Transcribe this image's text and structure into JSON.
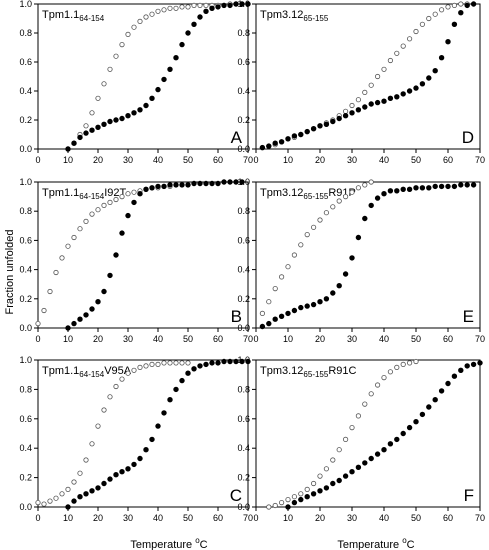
{
  "figure": {
    "ylabel": "Fraction unfolded",
    "xlabel_left": {
      "main": "Temperature ",
      "sup": "o",
      "unit": "C"
    },
    "xlabel_right": {
      "main": "Temperature ",
      "sup": "o",
      "unit": "C"
    }
  },
  "chart_data": [
    {
      "type": "scatter",
      "letter": "A",
      "title": {
        "main": "Tpm1.1",
        "sub": "64-154",
        "tail": ""
      },
      "xlim": [
        0,
        70
      ],
      "ylim": [
        0,
        1.0
      ],
      "xticks": [
        "0",
        "10",
        "20",
        "30",
        "40",
        "50",
        "60",
        "70"
      ],
      "yticks": [
        "0.0",
        "0.2",
        "0.4",
        "0.6",
        "0.8",
        "1.0"
      ],
      "series": [
        {
          "style": "open",
          "x": [
            10,
            12,
            14,
            16,
            18,
            20,
            22,
            24,
            26,
            28,
            30,
            32,
            34,
            36,
            38,
            40,
            42,
            44,
            46,
            48,
            50,
            52,
            54,
            56,
            58,
            60,
            62,
            64,
            66,
            68
          ],
          "y": [
            0.0,
            0.04,
            0.1,
            0.16,
            0.25,
            0.35,
            0.45,
            0.55,
            0.64,
            0.72,
            0.79,
            0.84,
            0.88,
            0.91,
            0.93,
            0.95,
            0.96,
            0.97,
            0.97,
            0.98,
            0.98,
            0.99,
            0.99,
            0.99,
            0.99,
            0.99,
            0.99,
            1.0,
            1.0,
            1.0
          ]
        },
        {
          "style": "filled",
          "x": [
            10,
            12,
            14,
            16,
            18,
            20,
            22,
            24,
            26,
            28,
            30,
            32,
            34,
            36,
            38,
            40,
            42,
            44,
            46,
            48,
            50,
            52,
            54,
            56,
            58,
            60,
            62,
            64,
            66,
            68,
            70
          ],
          "y": [
            0.0,
            0.04,
            0.08,
            0.11,
            0.13,
            0.15,
            0.17,
            0.19,
            0.2,
            0.21,
            0.23,
            0.25,
            0.27,
            0.3,
            0.35,
            0.41,
            0.48,
            0.55,
            0.63,
            0.72,
            0.8,
            0.86,
            0.91,
            0.95,
            0.97,
            0.98,
            0.99,
            0.99,
            1.0,
            1.0,
            1.0
          ]
        }
      ]
    },
    {
      "type": "scatter",
      "letter": "D",
      "title": {
        "main": "Tpm3.12",
        "sub": "65-155",
        "tail": ""
      },
      "xlim": [
        0,
        70
      ],
      "ylim": [
        0,
        1.0
      ],
      "xticks": [
        "0",
        "10",
        "20",
        "30",
        "40",
        "50",
        "60",
        "70"
      ],
      "yticks": [
        "0.0",
        "0.2",
        "0.4",
        "0.6",
        "0.8",
        "1.0"
      ],
      "series": [
        {
          "style": "open",
          "x": [
            2,
            4,
            6,
            8,
            10,
            12,
            14,
            16,
            18,
            20,
            22,
            24,
            26,
            28,
            30,
            32,
            34,
            36,
            38,
            40,
            42,
            44,
            46,
            48,
            50,
            52,
            54,
            56,
            58,
            60,
            62,
            64,
            66
          ],
          "y": [
            0.01,
            0.02,
            0.03,
            0.05,
            0.07,
            0.08,
            0.1,
            0.12,
            0.14,
            0.16,
            0.18,
            0.2,
            0.23,
            0.26,
            0.3,
            0.34,
            0.39,
            0.44,
            0.5,
            0.55,
            0.61,
            0.66,
            0.71,
            0.76,
            0.81,
            0.86,
            0.9,
            0.93,
            0.96,
            0.98,
            0.99,
            1.0,
            1.0
          ]
        },
        {
          "style": "filled",
          "x": [
            2,
            4,
            6,
            8,
            10,
            12,
            14,
            16,
            18,
            20,
            22,
            24,
            26,
            28,
            30,
            32,
            34,
            36,
            38,
            40,
            42,
            44,
            46,
            48,
            50,
            52,
            54,
            56,
            58,
            60,
            62,
            64,
            66,
            68
          ],
          "y": [
            0.01,
            0.02,
            0.04,
            0.05,
            0.07,
            0.09,
            0.1,
            0.12,
            0.14,
            0.16,
            0.17,
            0.19,
            0.21,
            0.23,
            0.25,
            0.27,
            0.29,
            0.31,
            0.32,
            0.33,
            0.35,
            0.36,
            0.38,
            0.4,
            0.42,
            0.45,
            0.49,
            0.54,
            0.63,
            0.74,
            0.86,
            0.94,
            0.99,
            1.0
          ]
        }
      ]
    },
    {
      "type": "scatter",
      "letter": "B",
      "title": {
        "main": "Tpm1.1",
        "sub": "64-154",
        "tail": "I92T"
      },
      "xlim": [
        0,
        70
      ],
      "ylim": [
        0,
        1.0
      ],
      "xticks": [
        "0",
        "10",
        "20",
        "30",
        "40",
        "50",
        "60",
        "70"
      ],
      "yticks": [
        "0.0",
        "0.2",
        "0.4",
        "0.6",
        "0.8",
        "1.0"
      ],
      "series": [
        {
          "style": "open",
          "x": [
            0,
            2,
            4,
            6,
            8,
            10,
            12,
            14,
            16,
            18,
            20,
            22,
            24,
            26,
            28,
            30,
            32,
            34,
            36,
            38,
            40,
            42,
            44,
            46,
            48,
            50
          ],
          "y": [
            0.03,
            0.12,
            0.25,
            0.38,
            0.48,
            0.56,
            0.62,
            0.68,
            0.73,
            0.78,
            0.81,
            0.84,
            0.86,
            0.88,
            0.9,
            0.92,
            0.93,
            0.94,
            0.95,
            0.96,
            0.96,
            0.97,
            0.97,
            0.98,
            0.98,
            0.98
          ]
        },
        {
          "style": "filled",
          "x": [
            10,
            12,
            14,
            16,
            18,
            20,
            22,
            24,
            26,
            28,
            30,
            32,
            34,
            36,
            38,
            40,
            42,
            44,
            46,
            48,
            50,
            52,
            54,
            56,
            58,
            60,
            62,
            64,
            66,
            68
          ],
          "y": [
            0.0,
            0.03,
            0.06,
            0.09,
            0.13,
            0.18,
            0.25,
            0.36,
            0.5,
            0.65,
            0.77,
            0.86,
            0.92,
            0.95,
            0.96,
            0.97,
            0.97,
            0.98,
            0.98,
            0.98,
            0.98,
            0.99,
            0.99,
            0.99,
            0.99,
            0.99,
            1.0,
            1.0,
            1.0,
            1.0
          ]
        }
      ]
    },
    {
      "type": "scatter",
      "letter": "E",
      "title": {
        "main": "Tpm3.12",
        "sub": "65-155",
        "tail": "R91P"
      },
      "xlim": [
        0,
        70
      ],
      "ylim": [
        0,
        1.0
      ],
      "xticks": [
        "0",
        "10",
        "20",
        "30",
        "40",
        "50",
        "60",
        "70"
      ],
      "yticks": [
        "0.0",
        "0.2",
        "0.4",
        "0.6",
        "0.8",
        "1.0"
      ],
      "series": [
        {
          "style": "open",
          "x": [
            2,
            4,
            6,
            8,
            10,
            12,
            14,
            16,
            18,
            20,
            22,
            24,
            26,
            28,
            30,
            32,
            34,
            36
          ],
          "y": [
            0.1,
            0.18,
            0.27,
            0.35,
            0.42,
            0.5,
            0.57,
            0.64,
            0.69,
            0.74,
            0.79,
            0.83,
            0.87,
            0.9,
            0.93,
            0.96,
            0.98,
            1.0
          ]
        },
        {
          "style": "filled",
          "x": [
            2,
            4,
            6,
            8,
            10,
            12,
            14,
            16,
            18,
            20,
            22,
            24,
            26,
            28,
            30,
            32,
            34,
            36,
            38,
            40,
            42,
            44,
            46,
            48,
            50,
            52,
            54,
            56,
            58,
            60,
            62,
            64,
            66,
            68
          ],
          "y": [
            0.01,
            0.03,
            0.06,
            0.08,
            0.1,
            0.12,
            0.14,
            0.15,
            0.16,
            0.18,
            0.2,
            0.24,
            0.29,
            0.37,
            0.48,
            0.62,
            0.75,
            0.84,
            0.89,
            0.92,
            0.94,
            0.94,
            0.95,
            0.95,
            0.96,
            0.96,
            0.96,
            0.97,
            0.97,
            0.97,
            0.97,
            0.98,
            0.98,
            0.98
          ]
        }
      ]
    },
    {
      "type": "scatter",
      "letter": "C",
      "title": {
        "main": "Tpm1.1",
        "sub": "64-154",
        "tail": "V95A"
      },
      "xlim": [
        0,
        70
      ],
      "ylim": [
        0,
        1.0
      ],
      "xticks": [
        "0",
        "10",
        "20",
        "30",
        "40",
        "50",
        "60",
        "70"
      ],
      "yticks": [
        "0.0",
        "0.2",
        "0.4",
        "0.6",
        "0.8",
        "1.0"
      ],
      "series": [
        {
          "style": "open",
          "x": [
            0,
            2,
            4,
            6,
            8,
            10,
            12,
            14,
            16,
            18,
            20,
            22,
            24,
            26,
            28,
            30,
            32,
            34,
            36,
            38,
            40,
            42,
            44,
            46,
            48,
            50
          ],
          "y": [
            0.03,
            0.02,
            0.04,
            0.06,
            0.09,
            0.12,
            0.17,
            0.23,
            0.32,
            0.43,
            0.55,
            0.66,
            0.75,
            0.82,
            0.87,
            0.91,
            0.93,
            0.95,
            0.96,
            0.97,
            0.97,
            0.98,
            0.98,
            0.98,
            0.98,
            0.98
          ]
        },
        {
          "style": "filled",
          "x": [
            10,
            12,
            14,
            16,
            18,
            20,
            22,
            24,
            26,
            28,
            30,
            32,
            34,
            36,
            38,
            40,
            42,
            44,
            46,
            48,
            50,
            52,
            54,
            56,
            58,
            60,
            62,
            64,
            66,
            68,
            70
          ],
          "y": [
            0.0,
            0.04,
            0.07,
            0.09,
            0.11,
            0.13,
            0.16,
            0.19,
            0.22,
            0.24,
            0.26,
            0.29,
            0.33,
            0.39,
            0.46,
            0.55,
            0.64,
            0.73,
            0.8,
            0.86,
            0.91,
            0.94,
            0.96,
            0.97,
            0.98,
            0.98,
            0.99,
            0.99,
            0.99,
            0.99,
            0.99
          ]
        }
      ]
    },
    {
      "type": "scatter",
      "letter": "F",
      "title": {
        "main": "Tpm3.12",
        "sub": "65-155",
        "tail": "R91C"
      },
      "xlim": [
        0,
        70
      ],
      "ylim": [
        0,
        1.0
      ],
      "xticks": [
        "0",
        "10",
        "20",
        "30",
        "40",
        "50",
        "60",
        "70"
      ],
      "yticks": [
        "0.0",
        "0.2",
        "0.4",
        "0.6",
        "0.8",
        "1.0"
      ],
      "series": [
        {
          "style": "open",
          "x": [
            4,
            6,
            8,
            10,
            12,
            14,
            16,
            18,
            20,
            22,
            24,
            26,
            28,
            30,
            32,
            34,
            36,
            38,
            40,
            42,
            44,
            46,
            48,
            50
          ],
          "y": [
            0.0,
            0.01,
            0.03,
            0.05,
            0.07,
            0.09,
            0.12,
            0.16,
            0.21,
            0.26,
            0.32,
            0.39,
            0.46,
            0.54,
            0.62,
            0.7,
            0.77,
            0.83,
            0.88,
            0.92,
            0.95,
            0.97,
            0.98,
            0.99
          ]
        },
        {
          "style": "filled",
          "x": [
            10,
            12,
            14,
            16,
            18,
            20,
            22,
            24,
            26,
            28,
            30,
            32,
            34,
            36,
            38,
            40,
            42,
            44,
            46,
            48,
            50,
            52,
            54,
            56,
            58,
            60,
            62,
            64,
            66,
            68,
            70
          ],
          "y": [
            0.0,
            0.03,
            0.05,
            0.07,
            0.09,
            0.11,
            0.13,
            0.16,
            0.18,
            0.21,
            0.24,
            0.27,
            0.3,
            0.33,
            0.36,
            0.39,
            0.43,
            0.46,
            0.5,
            0.54,
            0.58,
            0.63,
            0.68,
            0.73,
            0.79,
            0.84,
            0.89,
            0.93,
            0.96,
            0.97,
            0.98
          ]
        }
      ]
    }
  ]
}
